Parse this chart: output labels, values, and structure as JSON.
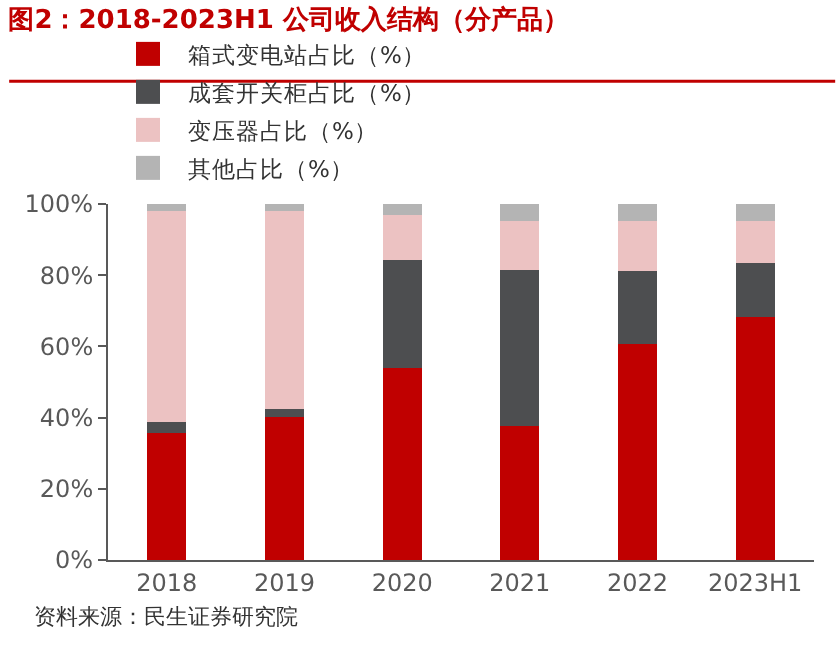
{
  "chart_data": {
    "type": "bar",
    "stacked": true,
    "title": "图2：2018-2023H1 公司收入结构（分产品）",
    "categories": [
      "2018",
      "2019",
      "2020",
      "2021",
      "2022",
      "2023H1"
    ],
    "series": [
      {
        "name": "箱式变电站占比（%）",
        "color": "#c00000",
        "values": [
          35.7,
          40.2,
          53.8,
          37.7,
          60.6,
          68.3
        ]
      },
      {
        "name": "成套开关柜占比（%）",
        "color": "#4d4e50",
        "values": [
          3.0,
          2.3,
          30.4,
          43.8,
          20.5,
          15.1
        ]
      },
      {
        "name": "变压器占比（%）",
        "color": "#ecc2c2",
        "values": [
          59.2,
          55.6,
          12.8,
          13.6,
          14.0,
          11.7
        ]
      },
      {
        "name": "其他占比（%）",
        "color": "#b4b4b4",
        "values": [
          2.1,
          1.9,
          3.0,
          4.9,
          4.9,
          4.9
        ]
      }
    ],
    "ylim": [
      0,
      100
    ],
    "yticks": [
      {
        "value": 0,
        "label": "0%"
      },
      {
        "value": 20,
        "label": "20%"
      },
      {
        "value": 40,
        "label": "40%"
      },
      {
        "value": 60,
        "label": "60%"
      },
      {
        "value": 80,
        "label": "80%"
      },
      {
        "value": 100,
        "label": "100%"
      }
    ],
    "legend": "top",
    "annotations": [
      "资料来源：民生证券研究院"
    ]
  }
}
